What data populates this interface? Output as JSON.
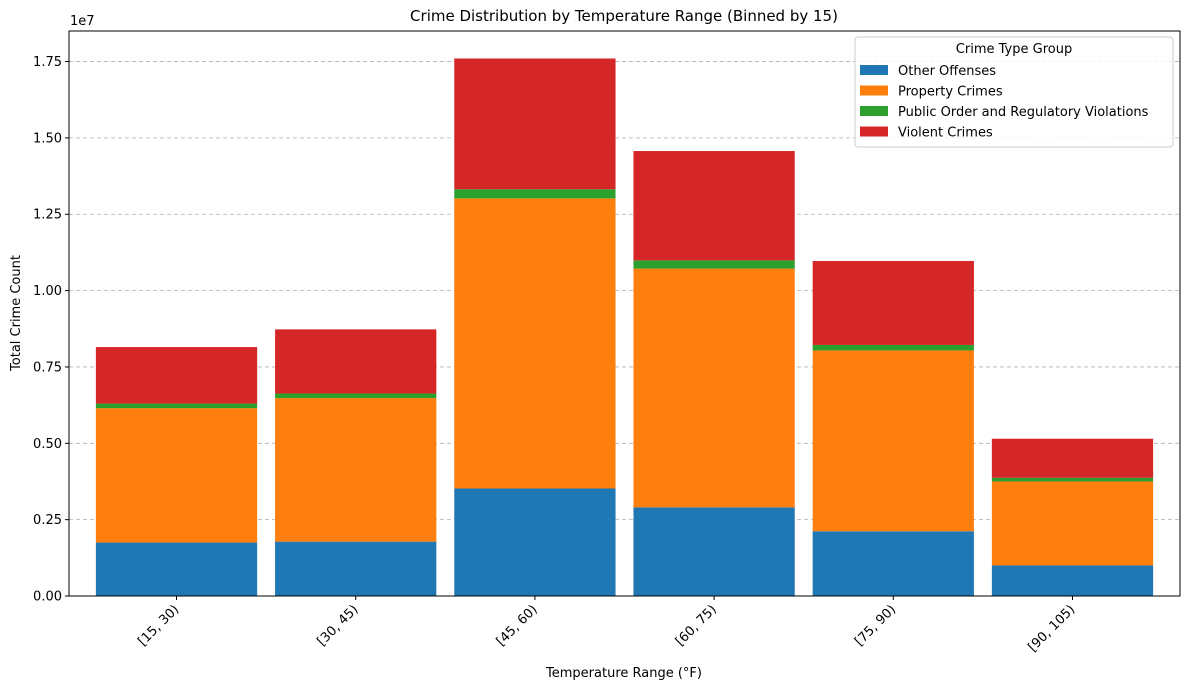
{
  "chart_data": {
    "type": "bar",
    "stacked": true,
    "title": "Crime Distribution by Temperature Range (Binned by 15)",
    "xlabel": "Temperature Range (°F)",
    "ylabel": "Total Crime Count",
    "y_multiplier_label": "1e7",
    "ylim": [
      0,
      1.85
    ],
    "yticks": [
      "0.00",
      "0.25",
      "0.50",
      "0.75",
      "1.00",
      "1.25",
      "1.50",
      "1.75"
    ],
    "grid": "y-dashed",
    "legend_title": "Crime Type Group",
    "legend_position": "top-right",
    "categories": [
      "[15, 30)",
      "[30, 45)",
      "[45, 60)",
      "[60, 75)",
      "[75, 90)",
      "[90, 105)"
    ],
    "series": [
      {
        "name": "Other Offenses",
        "color": "#1f77b4",
        "values": [
          0.175,
          0.178,
          0.352,
          0.29,
          0.212,
          0.1
        ]
      },
      {
        "name": "Property Crimes",
        "color": "#ff7f0e",
        "values": [
          0.44,
          0.47,
          0.95,
          0.782,
          0.592,
          0.275
        ]
      },
      {
        "name": "Public Order and Regulatory Violations",
        "color": "#2ca02c",
        "values": [
          0.015,
          0.015,
          0.03,
          0.027,
          0.018,
          0.012
        ]
      },
      {
        "name": "Violent Crimes",
        "color": "#d62728",
        "values": [
          0.185,
          0.21,
          0.428,
          0.358,
          0.275,
          0.128
        ]
      }
    ]
  }
}
